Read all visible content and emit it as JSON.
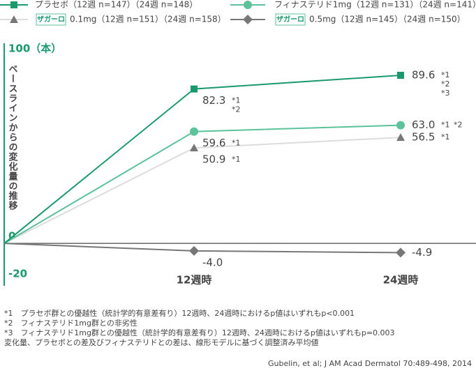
{
  "chart_data": {
    "type": "line",
    "y_label": "ベースラインからの変化量の推移",
    "categories": [
      null,
      "12週時",
      "24週時"
    ],
    "ylim": [
      -20,
      100
    ],
    "yticks": [
      {
        "value": 100,
        "label": "100（本）"
      },
      0,
      -20
    ],
    "series": [
      {
        "name": "プラセボ（12週 n=147）（24週 n=148）",
        "color": "#1a9a6c",
        "marker_color": "#1a9a6c",
        "marker": "square",
        "values": [
          0,
          82.3,
          89.6
        ],
        "value_labels": [
          null,
          "82.3",
          "89.6"
        ],
        "notes": [
          null,
          [
            "*1",
            "*2"
          ],
          [
            "*1",
            "*2",
            "*3"
          ]
        ]
      },
      {
        "name": "フィナステリド1mg（12週 n=131）（24週 n=141）",
        "color": "#5cc29b",
        "marker_color": "#5cc29b",
        "marker": "circle",
        "values": [
          0,
          59.6,
          63.0
        ],
        "value_labels": [
          null,
          "59.6",
          "63.0"
        ],
        "notes": [
          null,
          [
            "*1"
          ],
          [
            "*1",
            "*2"
          ]
        ]
      },
      {
        "badge": "ザガーロ",
        "name": "0.1mg（12週 n=151）（24週 n=158）",
        "color": "#dcdcdc",
        "marker_color": "#777777",
        "marker": "triangle",
        "values": [
          0,
          50.9,
          56.5
        ],
        "value_labels": [
          null,
          "50.9",
          "56.5"
        ],
        "notes": [
          null,
          [
            "*1"
          ],
          [
            "*1"
          ]
        ]
      },
      {
        "badge": "ザガーロ",
        "name": "0.5mg（12週 n=145）（24週 n=150）",
        "color": "#777777",
        "marker_color": "#777777",
        "marker": "diamond",
        "values": [
          0,
          -4.0,
          -4.9
        ],
        "value_labels": [
          null,
          "-4.0",
          "-4.9"
        ],
        "notes": [
          null,
          null,
          null
        ]
      }
    ],
    "footnotes": [
      "*1　プラセボ群との優越性（統計学的有意差有り）12週時、24週時におけるp値はいずれもp<0.001",
      "*2　フィナステリド1mg群との非劣性",
      "*3　フィナステリド1mg群との優越性（統計学的有意差有り）12週時、24週時におけるp値はいずれもp=0.003",
      "変化量、プラセボとの差及びフィナステリドとの差は、線形モデルに基づく調整済み平均値"
    ],
    "source": "Gubelin, et al; J AM Acad Dermatol 70:489-498, 2014"
  }
}
